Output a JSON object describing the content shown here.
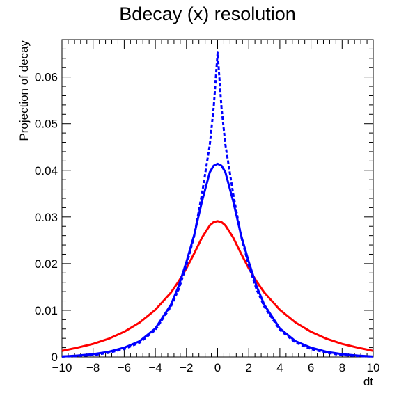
{
  "chart_data": {
    "type": "line",
    "title": "Bdecay (x) resolution",
    "xlabel": "dt",
    "ylabel": "Projection of decay",
    "xlim": [
      -10,
      10
    ],
    "ylim": [
      0,
      0.068
    ],
    "x_ticks": [
      -10,
      -8,
      -6,
      -4,
      -2,
      0,
      2,
      4,
      6,
      8,
      10
    ],
    "x_tick_labels": [
      "−10",
      "−8",
      "−6",
      "−4",
      "−2",
      "0",
      "2",
      "4",
      "6",
      "8",
      "10"
    ],
    "y_ticks": [
      0,
      0.01,
      0.02,
      0.03,
      0.04,
      0.05,
      0.06
    ],
    "y_tick_labels": [
      "0",
      "0.01",
      "0.02",
      "0.03",
      "0.04",
      "0.05",
      "0.06"
    ],
    "grid": false,
    "legend": "none",
    "x": [
      -10,
      -9,
      -8,
      -7,
      -6,
      -5,
      -4,
      -3,
      -2.5,
      -2,
      -1.5,
      -1,
      -0.5,
      -0.25,
      0,
      0.25,
      0.5,
      1,
      1.5,
      2,
      2.5,
      3,
      4,
      5,
      6,
      7,
      8,
      9,
      10
    ],
    "series": [
      {
        "color": "#ff0000",
        "style": "solid",
        "values": [
          0.0013,
          0.002,
          0.0028,
          0.0039,
          0.0054,
          0.0074,
          0.0101,
          0.0138,
          0.0162,
          0.019,
          0.0222,
          0.0256,
          0.0282,
          0.0289,
          0.0291,
          0.0289,
          0.0282,
          0.0256,
          0.0222,
          0.019,
          0.0162,
          0.0138,
          0.0101,
          0.0074,
          0.0054,
          0.0039,
          0.0028,
          0.002,
          0.0013
        ]
      },
      {
        "color": "#0000ff",
        "style": "solid",
        "values": [
          0.0001,
          0.0003,
          0.0006,
          0.0011,
          0.002,
          0.0034,
          0.0061,
          0.0112,
          0.0152,
          0.0204,
          0.0262,
          0.0334,
          0.0396,
          0.041,
          0.0414,
          0.041,
          0.0396,
          0.0334,
          0.0262,
          0.0204,
          0.0152,
          0.0112,
          0.0061,
          0.0034,
          0.002,
          0.0011,
          0.0006,
          0.0003,
          0.0001
        ]
      },
      {
        "color": "#0000ff",
        "style": "dashed",
        "values": [
          0.0001,
          0.0002,
          0.0004,
          0.0009,
          0.0017,
          0.0031,
          0.0058,
          0.0108,
          0.0145,
          0.0196,
          0.026,
          0.035,
          0.0455,
          0.0535,
          0.0652,
          0.0535,
          0.0455,
          0.035,
          0.026,
          0.0196,
          0.0145,
          0.0108,
          0.0058,
          0.0031,
          0.0017,
          0.0009,
          0.0004,
          0.0002,
          0.0001
        ]
      }
    ]
  }
}
